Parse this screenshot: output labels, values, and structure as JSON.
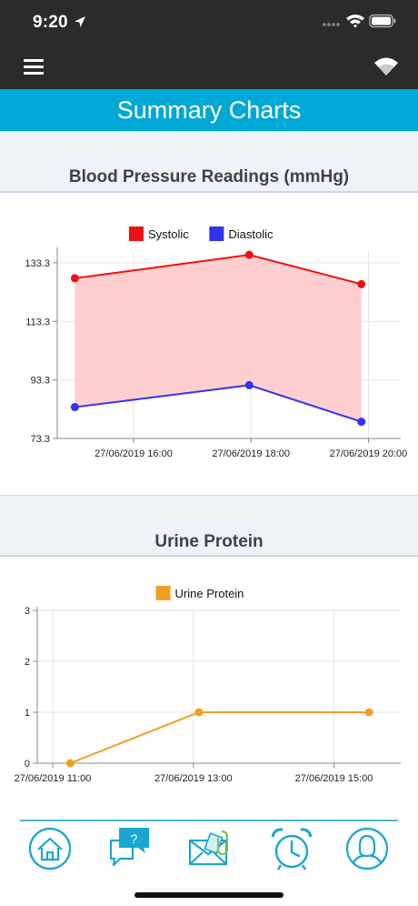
{
  "status_bar": {
    "time": "9:20",
    "icons": [
      "location-arrow-icon",
      "cellular-signal-icon",
      "wifi-icon",
      "battery-icon"
    ]
  },
  "nav_bar": {
    "icons": [
      "hamburger-menu-icon",
      "connectivity-icon"
    ]
  },
  "page": {
    "title": "Summary Charts"
  },
  "colors": {
    "header_bg": "#2b2b2b",
    "banner_bg": "#00a8d6",
    "systolic": "#ee1111",
    "diastolic": "#3333ee",
    "area_fill": "#ffcccc",
    "urine": "#f0a020",
    "tab_icon": "#19a6d0"
  },
  "sections": [
    {
      "title": "Blood Pressure Readings (mmHg)"
    },
    {
      "title": "Urine Protein"
    }
  ],
  "chart_data": [
    {
      "type": "line",
      "title": "Blood Pressure Readings (mmHg)",
      "x_tick_labels": [
        "27/06/2019 16:00",
        "27/06/2019 18:00",
        "27/06/2019 20:00"
      ],
      "x_ticks_hours": [
        16,
        18,
        20
      ],
      "xlim_hours": [
        14.7,
        20.55
      ],
      "ylim": [
        73.3,
        137.3
      ],
      "y_ticks": [
        73.3,
        93.3,
        113.3,
        133.3
      ],
      "y_tick_labels": [
        "73.3",
        "93.3",
        "113.3",
        "133.3"
      ],
      "legend_position": "top-center",
      "grid": true,
      "x": [
        "27/06/2019 15:00",
        "27/06/2019 17:58",
        "27/06/2019 19:52"
      ],
      "x_hours": [
        15,
        17.97,
        19.88
      ],
      "series": [
        {
          "name": "Systolic",
          "values": [
            128,
            136,
            126
          ],
          "color": "#ee1111"
        },
        {
          "name": "Diastolic",
          "values": [
            84,
            91.5,
            79
          ],
          "color": "#3333ee"
        }
      ],
      "fill_between_series": true
    },
    {
      "type": "line",
      "title": "Urine Protein",
      "x_tick_labels": [
        "27/06/2019 11:00",
        "27/06/2019 13:00",
        "27/06/2019 15:00"
      ],
      "x_ticks_hours": [
        11,
        13,
        15
      ],
      "xlim_hours": [
        10.78,
        15.95
      ],
      "ylim": [
        0,
        3
      ],
      "y_ticks": [
        0,
        1,
        2,
        3
      ],
      "y_tick_labels": [
        "0",
        "1",
        "2",
        "3"
      ],
      "legend_position": "top-center",
      "grid": true,
      "x": [
        "27/06/2019 11:15",
        "27/06/2019 13:05",
        "27/06/2019 15:30"
      ],
      "x_hours": [
        11.25,
        13.08,
        15.5
      ],
      "series": [
        {
          "name": "Urine Protein",
          "values": [
            0,
            1,
            1
          ],
          "color": "#f0a020"
        }
      ]
    }
  ],
  "bottom_nav": [
    {
      "name": "home-icon"
    },
    {
      "name": "chat-question-icon",
      "badge": "?"
    },
    {
      "name": "mail-attachment-icon"
    },
    {
      "name": "alarm-clock-icon"
    },
    {
      "name": "profile-icon"
    }
  ]
}
